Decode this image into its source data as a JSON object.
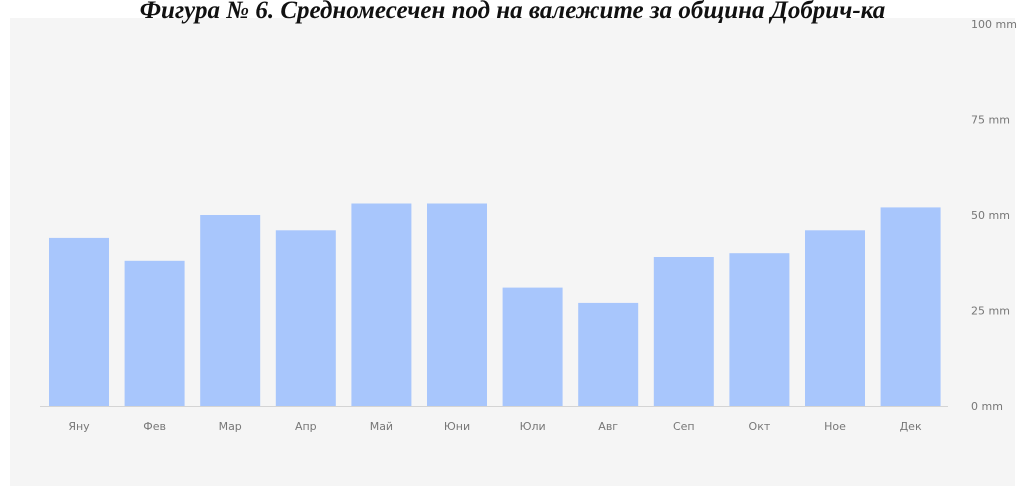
{
  "colors": {
    "background": "#ffffff",
    "plot_area": "#f5f5f5",
    "bar": "#a8c6fc",
    "axis": "#d4d4d4",
    "tick_text": "#777777"
  },
  "chart_data": {
    "type": "bar",
    "title": "Фигура № 6. Средномесечен под на валежите за община Добрич-ка",
    "xlabel": "",
    "ylabel": "",
    "categories": [
      "Яну",
      "Фев",
      "Мар",
      "Апр",
      "Май",
      "Юни",
      "Юли",
      "Авг",
      "Сеп",
      "Окт",
      "Ное",
      "Дек"
    ],
    "values": [
      44,
      38,
      50,
      46,
      53,
      53,
      31,
      27,
      39,
      40,
      46,
      52
    ],
    "ylim": [
      0,
      100
    ],
    "y_ticks": [
      {
        "value": 0,
        "label": "0 mm"
      },
      {
        "value": 25,
        "label": "25 mm"
      },
      {
        "value": 50,
        "label": "50 mm"
      },
      {
        "value": 75,
        "label": "75 mm"
      },
      {
        "value": 100,
        "label": "100 mm"
      }
    ],
    "y_axis_side": "right",
    "grid": false,
    "legend": "none"
  }
}
